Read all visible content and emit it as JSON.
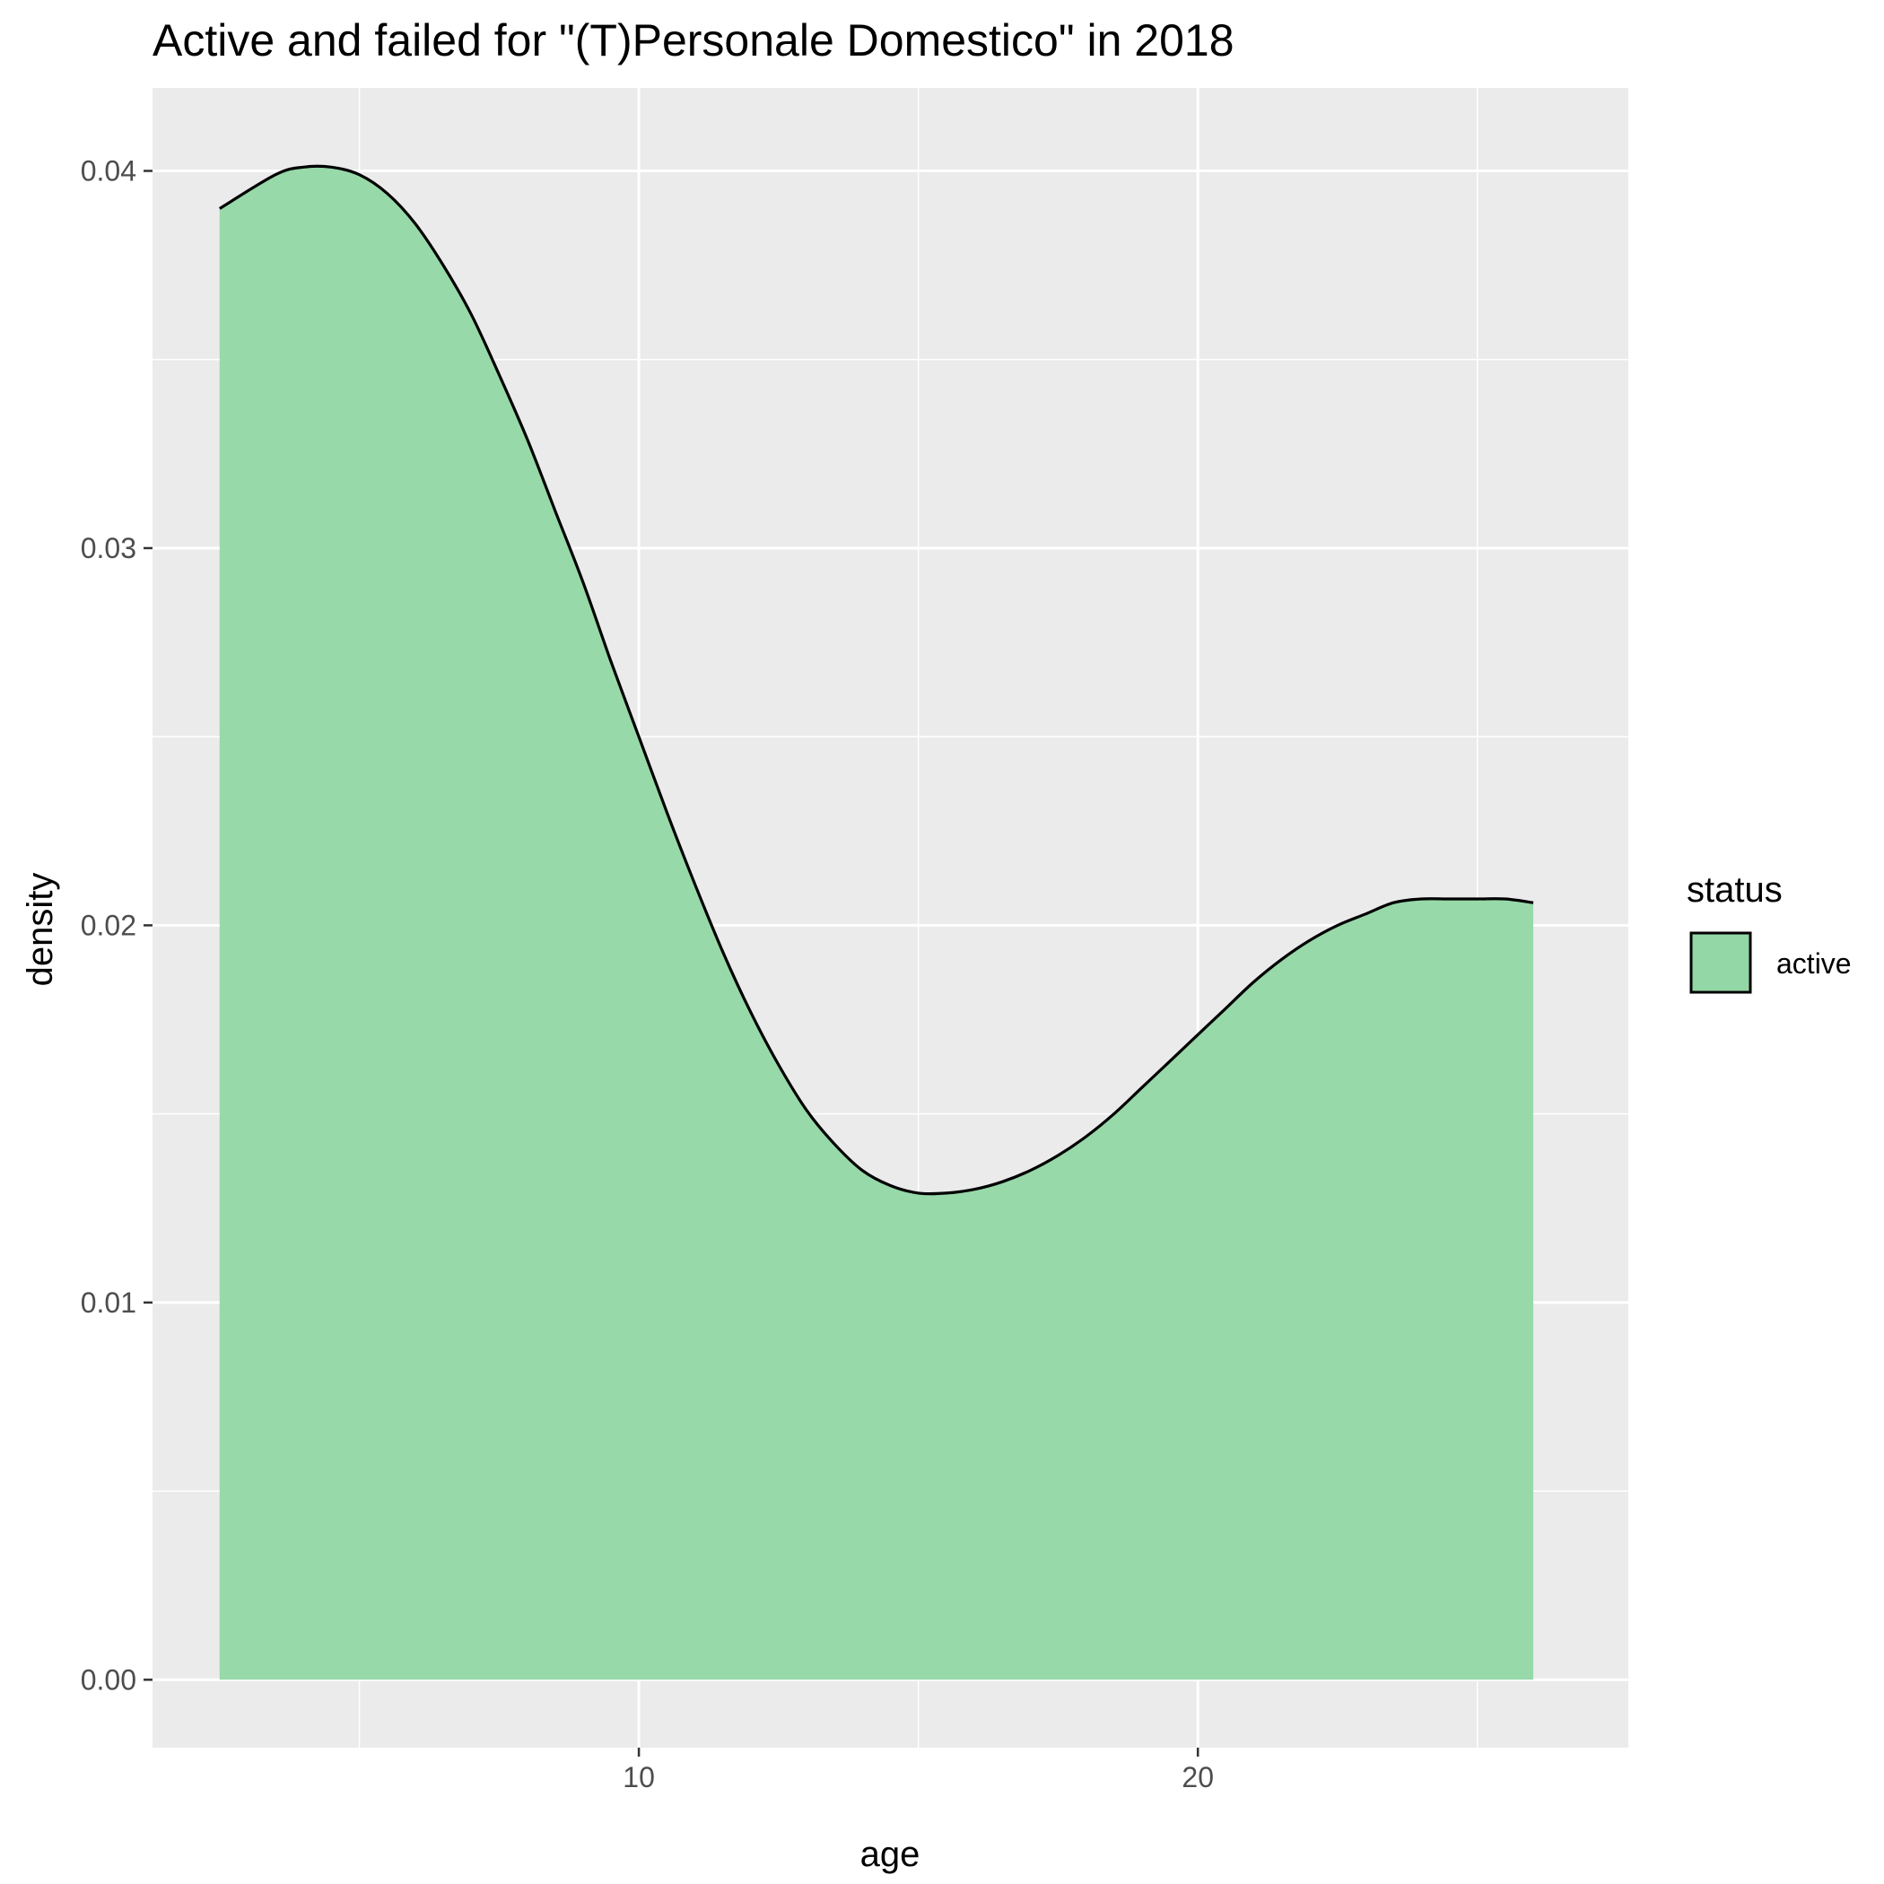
{
  "chart_data": {
    "type": "area",
    "title": "Active and failed for \"(T)Personale Domestico\" in 2018",
    "xlabel": "age",
    "ylabel": "density",
    "xlim": [
      1.3,
      27.7
    ],
    "ylim": [
      -0.0018,
      0.0422
    ],
    "x_ticks": [
      10,
      20
    ],
    "x_tick_labels": [
      "10",
      "20"
    ],
    "x_minor_ticks": [
      5,
      15,
      25
    ],
    "y_ticks": [
      0.0,
      0.01,
      0.02,
      0.03,
      0.04
    ],
    "y_tick_labels": [
      "0.00",
      "0.01",
      "0.02",
      "0.03",
      "0.04"
    ],
    "y_minor_ticks": [
      0.005,
      0.015,
      0.025,
      0.035
    ],
    "grid": true,
    "legend": {
      "title": "status",
      "position": "right"
    },
    "series": [
      {
        "name": "active",
        "fill": "#93d7a6",
        "line": "#000000",
        "x": [
          2.5,
          3.5,
          4.0,
          4.5,
          5.0,
          5.5,
          6.0,
          6.5,
          7.0,
          7.5,
          8.0,
          8.5,
          9.0,
          9.5,
          10.0,
          10.5,
          11.0,
          11.5,
          12.0,
          12.5,
          13.0,
          13.5,
          14.0,
          14.5,
          15.0,
          15.5,
          16.0,
          16.5,
          17.0,
          17.5,
          18.0,
          18.5,
          19.0,
          19.5,
          20.0,
          20.5,
          21.0,
          21.5,
          22.0,
          22.5,
          23.0,
          23.5,
          24.0,
          24.5,
          25.0,
          25.5,
          26.0
        ],
        "y": [
          0.039,
          0.0399,
          0.0401,
          0.0401,
          0.0399,
          0.0394,
          0.0386,
          0.0375,
          0.0362,
          0.0346,
          0.0329,
          0.031,
          0.0291,
          0.027,
          0.025,
          0.023,
          0.0211,
          0.0193,
          0.0177,
          0.0163,
          0.0151,
          0.0142,
          0.0135,
          0.0131,
          0.0129,
          0.0129,
          0.013,
          0.0132,
          0.0135,
          0.0139,
          0.0144,
          0.015,
          0.0157,
          0.0164,
          0.0171,
          0.0178,
          0.0185,
          0.0191,
          0.0196,
          0.02,
          0.0203,
          0.0206,
          0.0207,
          0.0207,
          0.0207,
          0.0207,
          0.0206
        ]
      }
    ]
  }
}
